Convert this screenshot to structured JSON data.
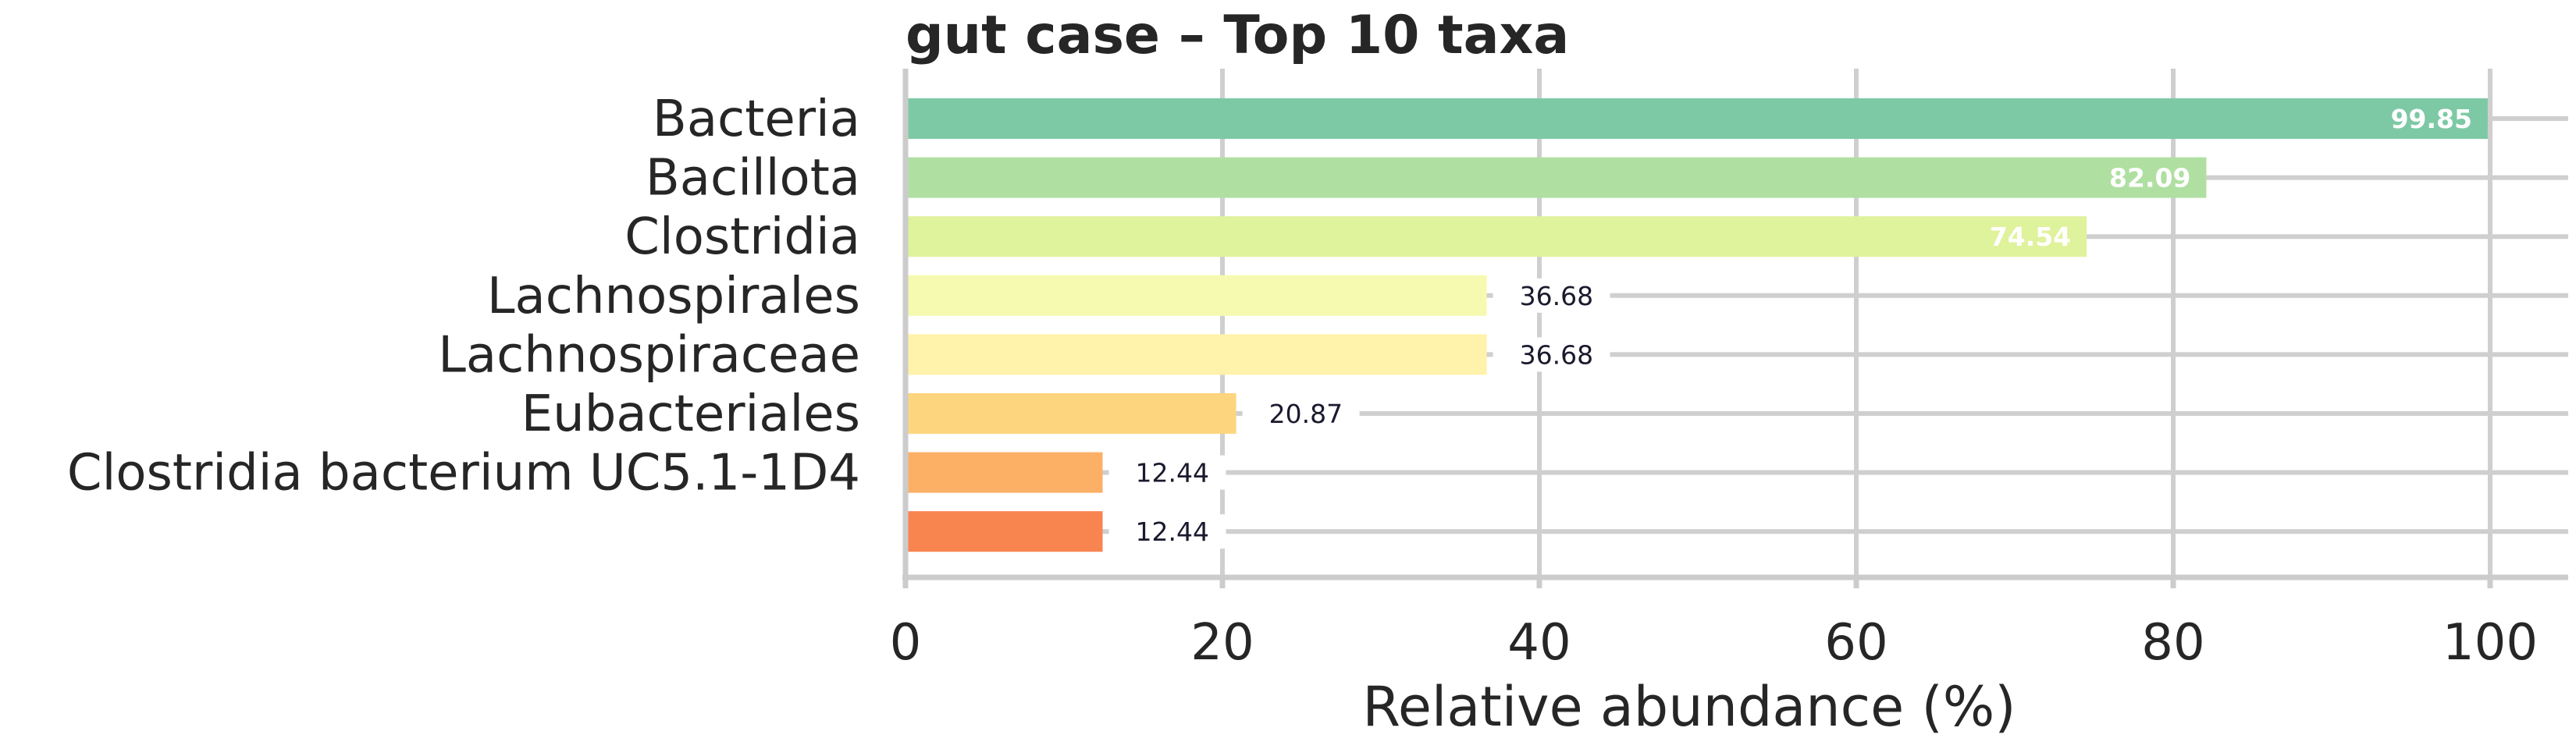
{
  "chart_data": {
    "type": "bar",
    "orientation": "horizontal",
    "title": "gut case – Top 10 taxa",
    "xlabel": "Relative abundance (%)",
    "ylabel": "",
    "xlim": [
      0,
      105
    ],
    "xticks": [
      0,
      20,
      40,
      60,
      80,
      100
    ],
    "grid": true,
    "categories": [
      "Bacteria",
      "Bacillota",
      "Clostridia",
      "Lachnospirales",
      "Lachnospiraceae",
      "Eubacteriales",
      "Clostridia bacterium UC5.1-1D4",
      ""
    ],
    "values": [
      99.85,
      82.09,
      74.54,
      36.68,
      36.68,
      20.87,
      12.44,
      12.44
    ],
    "value_labels": [
      "99.85",
      "82.09",
      "74.54",
      "36.68",
      "36.68",
      "20.87",
      "12.44",
      "12.44"
    ],
    "colors": [
      "#7ec9a5",
      "#b0dfa2",
      "#dff29c",
      "#f6fab0",
      "#fff2aa",
      "#fed57f",
      "#fcb066",
      "#f88450"
    ]
  }
}
